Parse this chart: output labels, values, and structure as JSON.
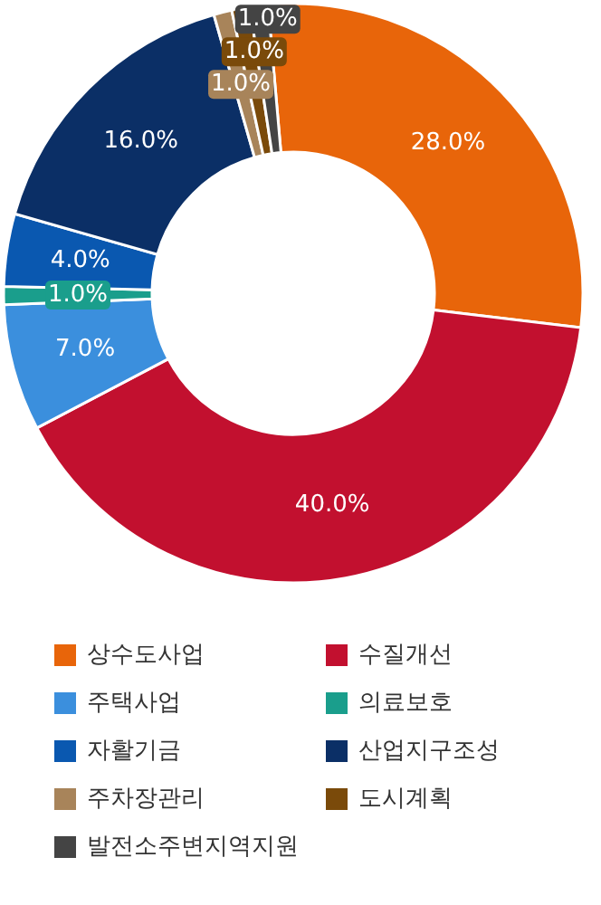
{
  "chart_data": {
    "type": "donut",
    "categories": [
      "상수도사업",
      "수질개선",
      "주택사업",
      "의료보호",
      "자활기금",
      "산업지구조성",
      "주차장관리",
      "도시계획",
      "발전소주변지역지원"
    ],
    "values": [
      28,
      40,
      7,
      1,
      4,
      16,
      1,
      1,
      1
    ],
    "value_labels": [
      "28.0%",
      "40.0%",
      "7.0%",
      "1.0%",
      "4.0%",
      "16.0%",
      "1.0%",
      "1.0%",
      "1.0%"
    ],
    "colors": [
      "#e8650a",
      "#c2102f",
      "#3b8fdd",
      "#1a9e8c",
      "#0a58b0",
      "#0b2f66",
      "#a8845a",
      "#7a4a0a",
      "#444444"
    ],
    "legend": "bottom"
  }
}
